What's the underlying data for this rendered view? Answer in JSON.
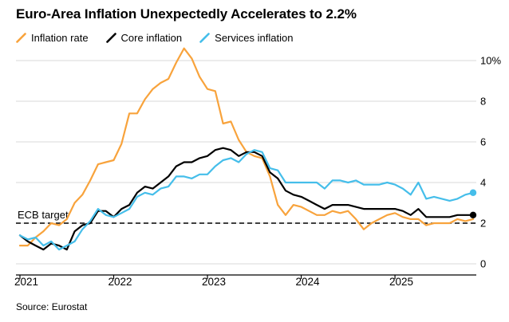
{
  "title": "Euro-Area Inflation Unexpectedly Accelerates to 2.2%",
  "source": "Source: Eurostat",
  "colors": {
    "inflation_rate": "#F8A33C",
    "core_inflation": "#000000",
    "services_inflation": "#45BEEA",
    "grid": "#D8D8D8",
    "axis": "#000000",
    "background": "#FFFFFF"
  },
  "legend": [
    {
      "label": "Inflation rate",
      "color": "#F8A33C"
    },
    {
      "label": "Core inflation",
      "color": "#000000"
    },
    {
      "label": "Services inflation",
      "color": "#45BEEA"
    }
  ],
  "chart_data": {
    "type": "line",
    "title": "Euro-Area Inflation Unexpectedly Accelerates to 2.2%",
    "x_unit": "month",
    "x_range": [
      "2021-01",
      "2025-11"
    ],
    "x_tick_labels": [
      "2021",
      "2022",
      "2023",
      "2024",
      "2025"
    ],
    "x_tick_month_indices": [
      0,
      12,
      24,
      36,
      48
    ],
    "y_ticks": [
      0,
      2,
      4,
      6,
      8,
      10
    ],
    "y_tick_labels": [
      "0",
      "2",
      "4",
      "6",
      "8",
      "10%"
    ],
    "ylim": [
      -0.5,
      10.6
    ],
    "grid": "horizontal",
    "legend_position": "top-left",
    "annotation": {
      "label": "ECB target",
      "value": 2,
      "style": "dashed"
    },
    "series": [
      {
        "name": "Inflation rate",
        "color": "#F8A33C",
        "end_dot": false,
        "values": [
          0.9,
          0.9,
          1.3,
          1.6,
          2.0,
          1.9,
          2.2,
          3.0,
          3.4,
          4.1,
          4.9,
          5.0,
          5.1,
          5.9,
          7.4,
          7.4,
          8.1,
          8.6,
          8.9,
          9.1,
          9.9,
          10.6,
          10.1,
          9.2,
          8.6,
          8.5,
          6.9,
          7.0,
          6.1,
          5.5,
          5.3,
          5.2,
          4.3,
          2.9,
          2.4,
          2.9,
          2.8,
          2.6,
          2.4,
          2.4,
          2.6,
          2.5,
          2.6,
          2.2,
          1.7,
          2.0,
          2.2,
          2.4,
          2.5,
          2.3,
          2.2,
          2.2,
          1.9,
          2.0,
          2.0,
          2.0,
          2.2,
          2.1,
          2.2
        ]
      },
      {
        "name": "Core inflation",
        "color": "#000000",
        "end_dot": true,
        "values": [
          1.4,
          1.1,
          0.9,
          0.7,
          1.0,
          0.9,
          0.7,
          1.6,
          1.9,
          2.0,
          2.6,
          2.6,
          2.3,
          2.7,
          2.9,
          3.5,
          3.8,
          3.7,
          4.0,
          4.3,
          4.8,
          5.0,
          5.0,
          5.2,
          5.3,
          5.6,
          5.7,
          5.6,
          5.3,
          5.5,
          5.5,
          5.3,
          4.5,
          4.2,
          3.6,
          3.4,
          3.3,
          3.1,
          2.9,
          2.7,
          2.9,
          2.9,
          2.9,
          2.8,
          2.7,
          2.7,
          2.7,
          2.7,
          2.7,
          2.6,
          2.4,
          2.7,
          2.3,
          2.3,
          2.3,
          2.3,
          2.4,
          2.4,
          2.4
        ]
      },
      {
        "name": "Services inflation",
        "color": "#45BEEA",
        "end_dot": true,
        "values": [
          1.4,
          1.2,
          1.3,
          0.9,
          1.1,
          0.7,
          0.9,
          1.1,
          1.7,
          2.1,
          2.7,
          2.4,
          2.3,
          2.5,
          2.7,
          3.3,
          3.5,
          3.4,
          3.7,
          3.8,
          4.3,
          4.3,
          4.2,
          4.4,
          4.4,
          4.8,
          5.1,
          5.2,
          5.0,
          5.4,
          5.6,
          5.5,
          4.7,
          4.6,
          4.0,
          4.0,
          4.0,
          4.0,
          4.0,
          3.7,
          4.1,
          4.1,
          4.0,
          4.1,
          3.9,
          3.9,
          3.9,
          4.0,
          3.9,
          3.7,
          3.4,
          4.0,
          3.2,
          3.3,
          3.2,
          3.1,
          3.2,
          3.4,
          3.5
        ]
      }
    ]
  }
}
